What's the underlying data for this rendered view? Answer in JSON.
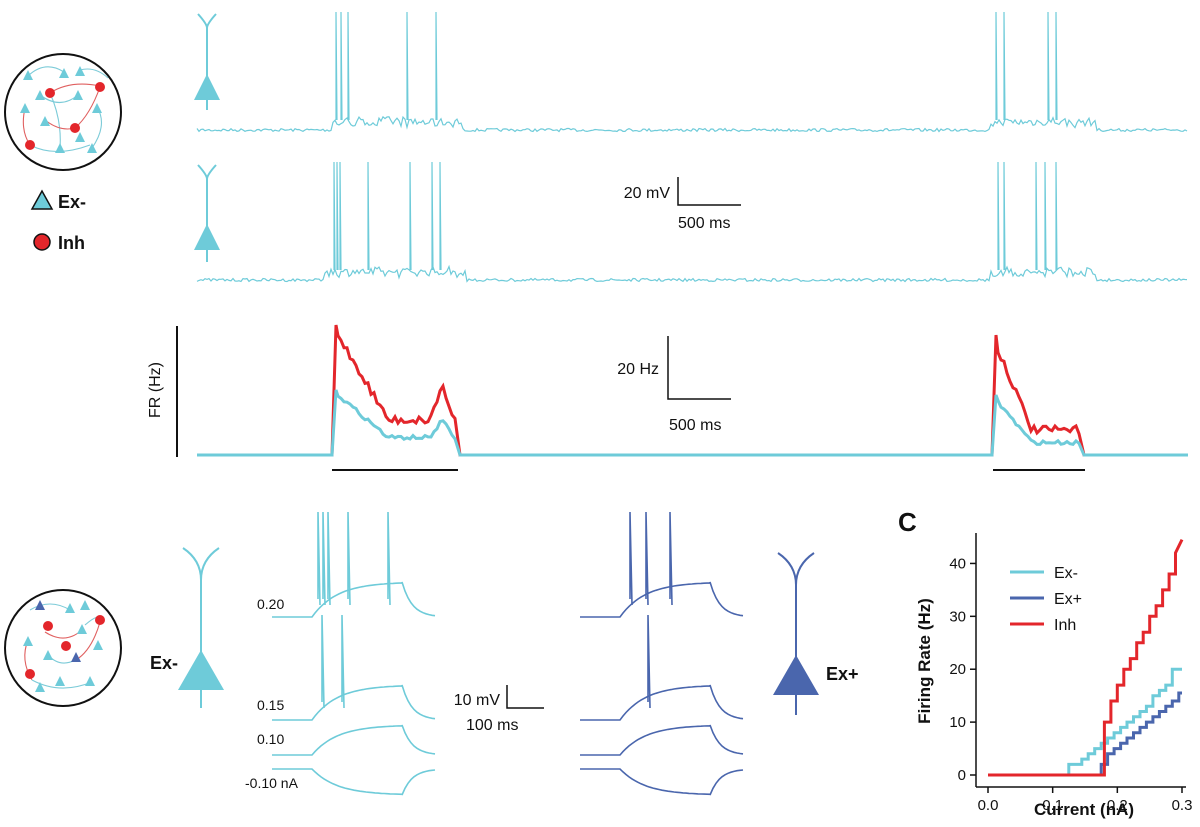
{
  "colors": {
    "ex_minus": "#6ecbd9",
    "ex_plus": "#4a66ad",
    "inh": "#e3262b",
    "axis": "#111111",
    "arrow_ex": "#7ccbd8",
    "arrow_inh": "#e06060"
  },
  "panel_a": {
    "legend": {
      "ex_label": "Ex-",
      "inh_label": "Inh"
    },
    "voltage_scale": {
      "value_label": "20 mV",
      "time_label": "500 ms"
    },
    "rate_scale": {
      "value_label": "20 Hz",
      "time_label": "500 ms"
    },
    "rate_axis_label": "FR (Hz)"
  },
  "panel_b": {
    "ex_minus_label": "Ex-",
    "ex_plus_label": "Ex+",
    "current_levels": [
      "0.20",
      "0.15",
      "0.10",
      "-0.10 nA"
    ],
    "scale": {
      "value_label": "10 mV",
      "time_label": "100 ms"
    }
  },
  "panel_c": {
    "panel_letter": "C",
    "chart_data": {
      "type": "line",
      "xlabel": "Current (nA)",
      "ylabel": "Firing Rate (Hz)",
      "xlim": [
        0,
        0.3
      ],
      "ylim": [
        0,
        45
      ],
      "x_ticks": [
        "0.0",
        "0.1",
        "0.2",
        "0.3"
      ],
      "y_ticks": [
        "0",
        "10",
        "20",
        "30",
        "40"
      ],
      "legend_position": "top-left",
      "series": [
        {
          "name": "Ex-",
          "color": "#6ecbd9",
          "x": [
            0.0,
            0.125,
            0.125,
            0.135,
            0.135,
            0.145,
            0.145,
            0.155,
            0.155,
            0.165,
            0.165,
            0.175,
            0.175,
            0.185,
            0.185,
            0.195,
            0.195,
            0.205,
            0.205,
            0.215,
            0.215,
            0.225,
            0.225,
            0.235,
            0.235,
            0.245,
            0.245,
            0.255,
            0.255,
            0.265,
            0.265,
            0.275,
            0.275,
            0.285,
            0.285,
            0.3
          ],
          "y": [
            0,
            0,
            2,
            2,
            2,
            2,
            3,
            3,
            4,
            4,
            5,
            5,
            6,
            6,
            7,
            7,
            8,
            8,
            9,
            9,
            10,
            10,
            11,
            11,
            12,
            12,
            13,
            13,
            15,
            15,
            16,
            16,
            17,
            17,
            20,
            20
          ]
        },
        {
          "name": "Ex+",
          "color": "#4a66ad",
          "x": [
            0.0,
            0.175,
            0.175,
            0.185,
            0.185,
            0.195,
            0.195,
            0.205,
            0.205,
            0.215,
            0.215,
            0.225,
            0.225,
            0.235,
            0.235,
            0.245,
            0.245,
            0.255,
            0.255,
            0.265,
            0.265,
            0.275,
            0.275,
            0.285,
            0.285,
            0.295,
            0.295,
            0.3
          ],
          "y": [
            0,
            0,
            2,
            2,
            4,
            4,
            5,
            5,
            6,
            6,
            7,
            7,
            8,
            8,
            9,
            9,
            10,
            10,
            11,
            11,
            12,
            12,
            13,
            13,
            14,
            14,
            15.5,
            15.5
          ]
        },
        {
          "name": "Inh",
          "color": "#e3262b",
          "x": [
            0.0,
            0.18,
            0.18,
            0.19,
            0.19,
            0.2,
            0.2,
            0.21,
            0.21,
            0.22,
            0.22,
            0.23,
            0.23,
            0.24,
            0.24,
            0.25,
            0.25,
            0.26,
            0.26,
            0.27,
            0.27,
            0.28,
            0.28,
            0.29,
            0.29,
            0.3
          ],
          "y": [
            0,
            0,
            10,
            10,
            14,
            14,
            17,
            17,
            20,
            20,
            22,
            22,
            25,
            25,
            27,
            27,
            30,
            30,
            32,
            32,
            35,
            35,
            38,
            38,
            42,
            44.5
          ]
        }
      ]
    }
  }
}
